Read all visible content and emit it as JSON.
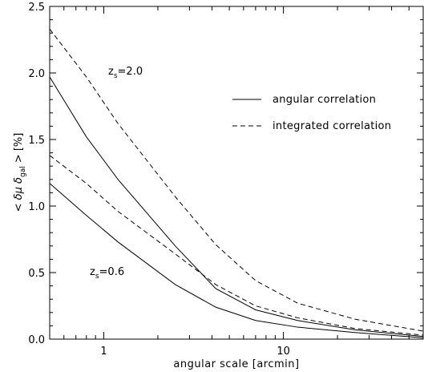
{
  "chart_data": {
    "type": "line",
    "xscale": "log",
    "xlabel": "angular scale [arcmin]",
    "ylabel": {
      "prefix": "< δμ δ",
      "subscript": "gal",
      "suffix": " >  [%]"
    },
    "xlim": [
      0.5,
      60
    ],
    "ylim": [
      0.0,
      2.5
    ],
    "x_ticks": [
      1,
      10
    ],
    "x_tick_labels": [
      "1",
      "10"
    ],
    "y_ticks": [
      0.0,
      0.5,
      1.0,
      1.5,
      2.0,
      2.5
    ],
    "y_tick_labels": [
      "0.0",
      "0.5",
      "1.0",
      "1.5",
      "2.0",
      "2.5"
    ],
    "grid": false,
    "legend_position": "top-right",
    "legend": [
      {
        "label": "angular correlation",
        "style": "solid"
      },
      {
        "label": "integrated correlation",
        "style": "dashed"
      }
    ],
    "annotations": [
      {
        "base": "z",
        "sub": "s",
        "text": "=2.0"
      },
      {
        "base": "z",
        "sub": "s",
        "text": "=0.6"
      }
    ],
    "series": [
      {
        "style": "solid",
        "group": "zs=2.0",
        "x": [
          0.5,
          0.8,
          1.2,
          2.5,
          4.2,
          7,
          12,
          25,
          60
        ],
        "y": [
          1.97,
          1.52,
          1.2,
          0.7,
          0.38,
          0.22,
          0.14,
          0.07,
          0.02
        ]
      },
      {
        "style": "dashed",
        "group": "zs=2.0",
        "x": [
          0.5,
          0.8,
          1.2,
          2.5,
          4.2,
          7,
          12,
          25,
          60
        ],
        "y": [
          2.33,
          1.97,
          1.62,
          1.07,
          0.71,
          0.44,
          0.27,
          0.15,
          0.06
        ]
      },
      {
        "style": "solid",
        "group": "zs=0.6",
        "x": [
          0.5,
          0.8,
          1.2,
          2.5,
          4.2,
          7,
          12,
          25,
          60
        ],
        "y": [
          1.17,
          0.93,
          0.73,
          0.41,
          0.24,
          0.14,
          0.09,
          0.05,
          0.01
        ]
      },
      {
        "style": "dashed",
        "group": "zs=0.6",
        "x": [
          0.5,
          0.8,
          1.2,
          2.5,
          4.2,
          7,
          12,
          25,
          60
        ],
        "y": [
          1.38,
          1.17,
          0.96,
          0.64,
          0.41,
          0.25,
          0.16,
          0.08,
          0.03
        ]
      }
    ]
  }
}
